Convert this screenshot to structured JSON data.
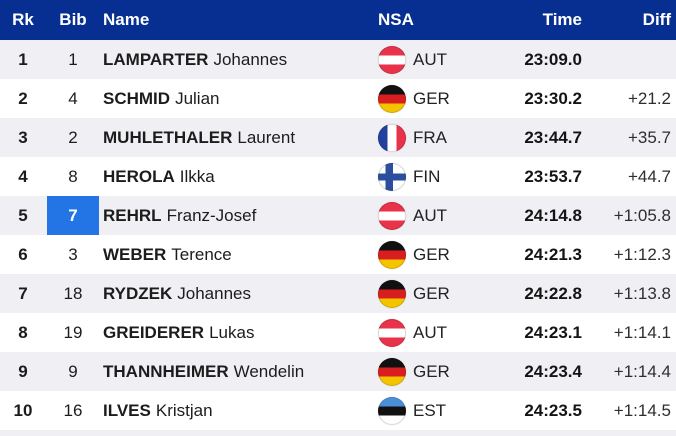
{
  "colors": {
    "header_bg": "#062f91",
    "header_text": "#ffffff",
    "bib_highlight_bg": "#2374e4",
    "bib_highlight_text": "#ffffff",
    "row_alt_bg": "#f0f0f4"
  },
  "header": {
    "rk": "Rk",
    "bib": "Bib",
    "name": "Name",
    "nsa": "NSA",
    "time": "Time",
    "diff": "Diff"
  },
  "table": {
    "rows": [
      {
        "rk": "1",
        "bib": "1",
        "bib_highlight": "false",
        "surname": "LAMPARTER",
        "firstname": "Johannes",
        "nsa": "AUT",
        "flag": "aut",
        "time": "23:09.0",
        "diff": ""
      },
      {
        "rk": "2",
        "bib": "4",
        "bib_highlight": "false",
        "surname": "SCHMID",
        "firstname": "Julian",
        "nsa": "GER",
        "flag": "ger",
        "time": "23:30.2",
        "diff": "+21.2"
      },
      {
        "rk": "3",
        "bib": "2",
        "bib_highlight": "false",
        "surname": "MUHLETHALER",
        "firstname": "Laurent",
        "nsa": "FRA",
        "flag": "fra",
        "time": "23:44.7",
        "diff": "+35.7"
      },
      {
        "rk": "4",
        "bib": "8",
        "bib_highlight": "false",
        "surname": "HEROLA",
        "firstname": "Ilkka",
        "nsa": "FIN",
        "flag": "fin",
        "time": "23:53.7",
        "diff": "+44.7"
      },
      {
        "rk": "5",
        "bib": "7",
        "bib_highlight": "true",
        "surname": "REHRL",
        "firstname": "Franz-Josef",
        "nsa": "AUT",
        "flag": "aut",
        "time": "24:14.8",
        "diff": "+1:05.8"
      },
      {
        "rk": "6",
        "bib": "3",
        "bib_highlight": "false",
        "surname": "WEBER",
        "firstname": "Terence",
        "nsa": "GER",
        "flag": "ger",
        "time": "24:21.3",
        "diff": "+1:12.3"
      },
      {
        "rk": "7",
        "bib": "18",
        "bib_highlight": "false",
        "surname": "RYDZEK",
        "firstname": "Johannes",
        "nsa": "GER",
        "flag": "ger",
        "time": "24:22.8",
        "diff": "+1:13.8"
      },
      {
        "rk": "8",
        "bib": "19",
        "bib_highlight": "false",
        "surname": "GREIDERER",
        "firstname": "Lukas",
        "nsa": "AUT",
        "flag": "aut",
        "time": "24:23.1",
        "diff": "+1:14.1"
      },
      {
        "rk": "9",
        "bib": "9",
        "bib_highlight": "false",
        "surname": "THANNHEIMER",
        "firstname": "Wendelin",
        "nsa": "GER",
        "flag": "ger",
        "time": "24:23.4",
        "diff": "+1:14.4"
      },
      {
        "rk": "10",
        "bib": "16",
        "bib_highlight": "false",
        "surname": "ILVES",
        "firstname": "Kristjan",
        "nsa": "EST",
        "flag": "est",
        "time": "24:23.5",
        "diff": "+1:14.5"
      }
    ]
  }
}
